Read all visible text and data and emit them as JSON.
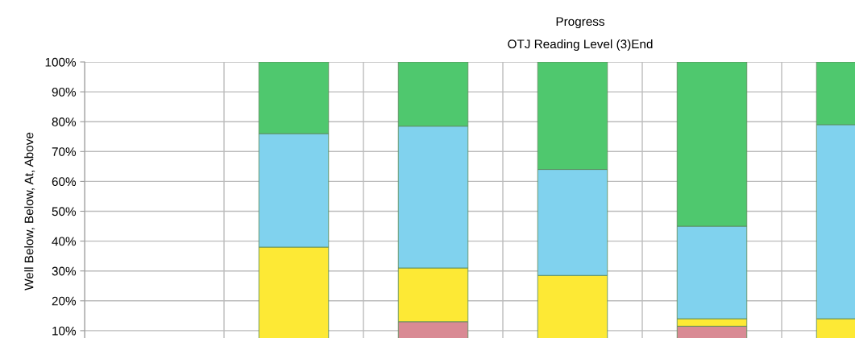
{
  "chart_data": {
    "type": "bar",
    "title": "Progress",
    "subtitle": "OTJ Reading Level (3)End",
    "ylabel": "Well Below, Below, At, Above",
    "categories": [
      null,
      null,
      null,
      null,
      null,
      null
    ],
    "stacked": true,
    "series": [
      {
        "color": "#d98a94",
        "values": [
          null,
          null,
          13,
          null,
          11.5,
          null
        ]
      },
      {
        "color": "#fde935",
        "values": [
          null,
          38,
          18,
          28.5,
          2.5,
          14
        ]
      },
      {
        "color": "#80d2ee",
        "values": [
          null,
          38,
          47.5,
          35.5,
          31,
          65
        ]
      },
      {
        "color": "#4fc86e",
        "values": [
          null,
          24,
          21.5,
          36,
          55,
          21
        ]
      }
    ],
    "ylim": [
      0,
      100
    ],
    "yticks": [
      {
        "value": 10,
        "label": "10%"
      },
      {
        "value": 20,
        "label": "20%"
      },
      {
        "value": 30,
        "label": "30%"
      },
      {
        "value": 40,
        "label": "40%"
      },
      {
        "value": 50,
        "label": "50%"
      },
      {
        "value": 60,
        "label": "60%"
      },
      {
        "value": 70,
        "label": "70%"
      },
      {
        "value": 80,
        "label": "80%"
      },
      {
        "value": 90,
        "label": "90%"
      },
      {
        "value": 100,
        "label": "100%"
      }
    ],
    "grid": true,
    "tick_labels": "y"
  }
}
